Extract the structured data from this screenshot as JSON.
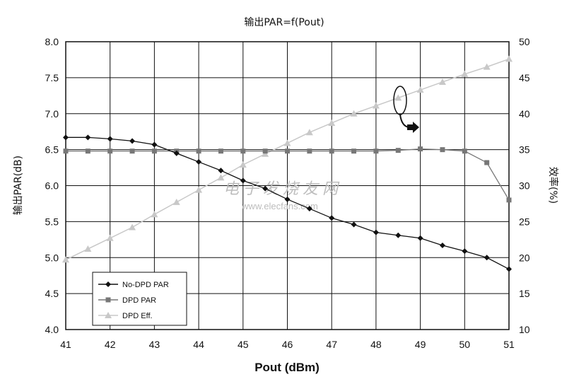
{
  "chart_data": {
    "type": "line",
    "title": "输出PAR=f(Pout)",
    "xlabel": "Pout (dBm)",
    "ylabel": "输出PAR(dB)",
    "y2label": "效率(%)",
    "xlim": [
      41,
      51
    ],
    "ylim": [
      4.0,
      8.0
    ],
    "y2lim": [
      10,
      50
    ],
    "x_ticks": [
      "41",
      "42",
      "43",
      "44",
      "45",
      "46",
      "47",
      "48",
      "49",
      "50",
      "51"
    ],
    "y_ticks": [
      "4.0",
      "4.5",
      "5.0",
      "5.5",
      "6.0",
      "6.5",
      "7.0",
      "7.5",
      "8.0"
    ],
    "y2_ticks": [
      "10",
      "15",
      "20",
      "25",
      "30",
      "35",
      "40",
      "45",
      "50"
    ],
    "grid": true,
    "legend_position": "bottom-left",
    "series": [
      {
        "name": "No-DPD PAR",
        "axis": "left",
        "marker": "diamond",
        "color": "#111111",
        "x": [
          41,
          41.5,
          42,
          42.5,
          43,
          43.5,
          44,
          44.5,
          45,
          45.5,
          46,
          46.5,
          47,
          47.5,
          48,
          48.5,
          49,
          49.5,
          50,
          50.5,
          51
        ],
        "values": [
          6.67,
          6.67,
          6.65,
          6.62,
          6.57,
          6.45,
          6.33,
          6.21,
          6.07,
          5.96,
          5.81,
          5.68,
          5.55,
          5.46,
          5.35,
          5.31,
          5.27,
          5.17,
          5.09,
          5.0,
          4.84
        ]
      },
      {
        "name": "DPD PAR",
        "axis": "left",
        "marker": "square",
        "color": "#777777",
        "x": [
          41,
          41.5,
          42,
          42.5,
          43,
          43.5,
          44,
          44.5,
          45,
          45.5,
          46,
          46.5,
          47,
          47.5,
          48,
          48.5,
          49,
          49.5,
          50,
          50.5,
          51
        ],
        "values": [
          6.48,
          6.48,
          6.48,
          6.48,
          6.48,
          6.48,
          6.48,
          6.48,
          6.48,
          6.48,
          6.48,
          6.48,
          6.48,
          6.48,
          6.48,
          6.49,
          6.51,
          6.5,
          6.48,
          6.32,
          5.8
        ]
      },
      {
        "name": "DPD Eff.",
        "axis": "right",
        "marker": "triangle",
        "color": "#c8c8c8",
        "x": [
          41,
          41.5,
          42,
          42.5,
          43,
          43.5,
          44,
          44.5,
          45,
          45.5,
          46,
          46.5,
          47,
          47.5,
          48,
          48.5,
          49,
          49.5,
          50,
          50.5,
          51
        ],
        "values": [
          19.7,
          21.2,
          22.7,
          24.2,
          26.0,
          27.7,
          29.4,
          31.1,
          32.9,
          34.4,
          35.9,
          37.4,
          38.7,
          40.0,
          41.1,
          42.2,
          43.3,
          44.4,
          45.5,
          46.5,
          47.6
        ]
      }
    ]
  },
  "watermark": {
    "text": "电子发烧友网",
    "url": "www.elecfans.com"
  }
}
